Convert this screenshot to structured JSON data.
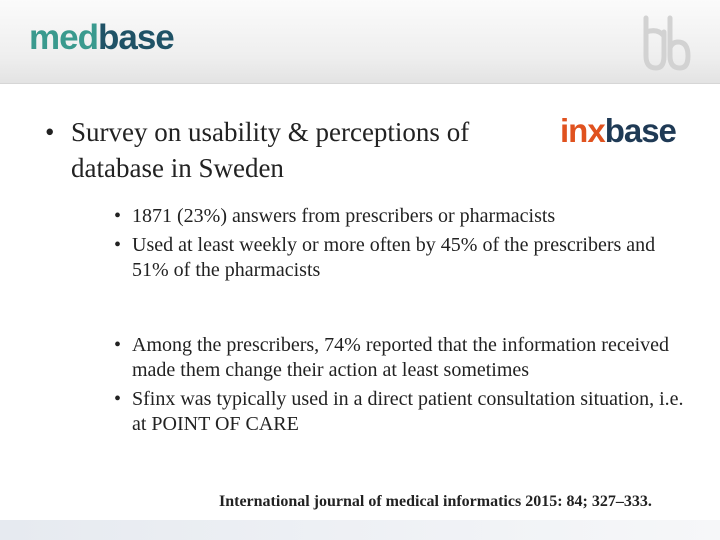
{
  "header": {
    "logo_part1": "med",
    "logo_part2": "base"
  },
  "heading": {
    "bullet": "•",
    "text": "Survey on usability & perceptions of",
    "text2": "database in Sweden",
    "brand_part1": "inx",
    "brand_part2": "base"
  },
  "bullets_group1": [
    {
      "bullet": "•",
      "text": "1871 (23%) answers from prescribers or pharmacists"
    },
    {
      "bullet": "•",
      "text": "Used at least weekly or more often by 45% of the prescribers and 51% of the pharmacists"
    }
  ],
  "bullets_group2": [
    {
      "bullet": "•",
      "text": "Among the prescribers, 74% reported that the information received made them change their action at least sometimes"
    },
    {
      "bullet": "•",
      "text": "Sfinx was typically used in a direct patient consultation situation, i.e. at POINT OF CARE"
    }
  ],
  "citation": "International journal of medical informatics 2015: 84; 327–333.",
  "colors": {
    "medbase_accent": "#3a9a8e",
    "medbase_dark": "#1f5266",
    "inxbase_orange": "#e0521f",
    "inxbase_dark": "#1f3a55"
  }
}
